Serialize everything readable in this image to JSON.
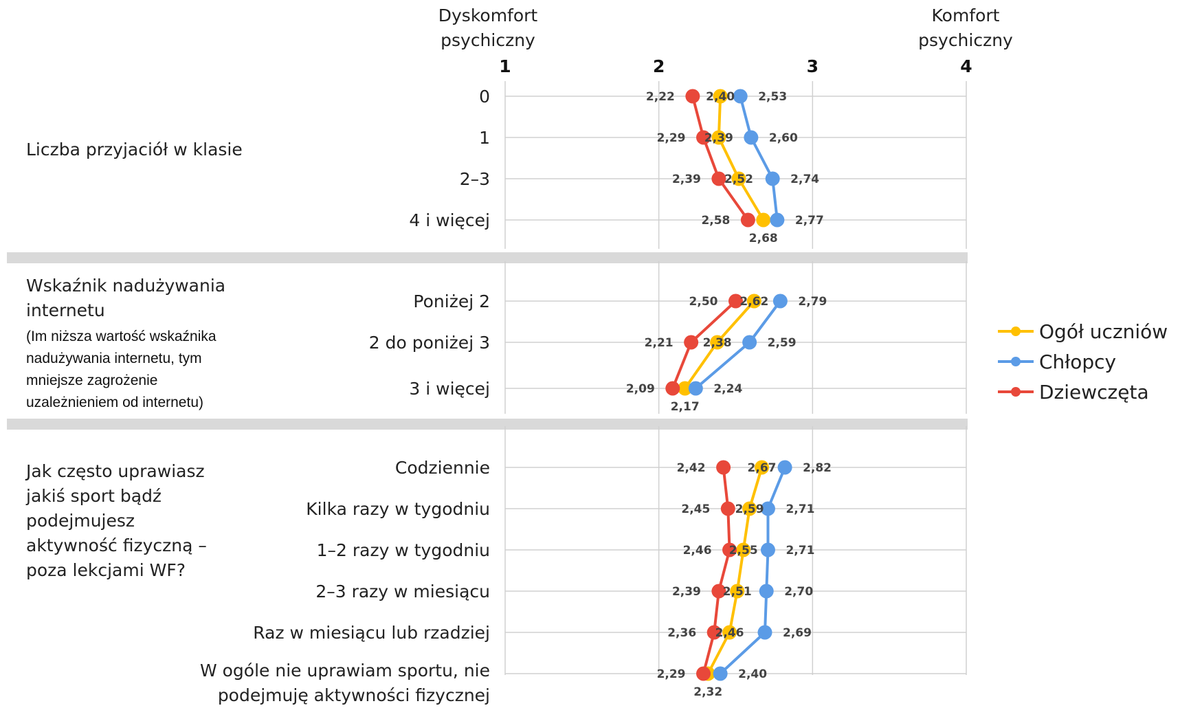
{
  "headers": {
    "left": "Dyskomfort psychiczny",
    "right": "Komfort psychiczny"
  },
  "groups": [
    {
      "label": "Liczba przyjaciół w klasie",
      "note": ""
    },
    {
      "label": "Wskaźnik nadużywania internetu",
      "note": "(Im niższa wartość wskaźnika nadużywania internetu, tym mniejsze zagrożenie uzależnieniem od internetu)"
    },
    {
      "label": "Jak często uprawiasz jakiś sport bądź podejmujesz aktywność fizyczną – poza lekcjami WF?",
      "note": ""
    }
  ],
  "legend": [
    {
      "name": "Ogół uczniów",
      "color": "#FFC000"
    },
    {
      "name": "Chłopcy",
      "color": "#5B9BE6"
    },
    {
      "name": "Dziewczęta",
      "color": "#E8483A"
    }
  ],
  "chart_data": {
    "type": "line",
    "orientation": "horizontal",
    "xlim": [
      1,
      4
    ],
    "xticks": [
      "1",
      "2",
      "3",
      "4"
    ],
    "grid": true,
    "legend_position": "right",
    "categories": [
      "0",
      "1",
      "2–3",
      "4 i więcej",
      "Poniżej 2",
      "2 do poniżej 3",
      "3 i więcej",
      "Codziennie",
      "Kilka razy w tygodniu",
      "1–2 razy w tygodniu",
      "2–3 razy w miesiącu",
      "Raz w miesiącu lub rzadziej",
      "W ogóle nie uprawiam sportu, nie podejmuję aktywności fizycznej"
    ],
    "category_groups": [
      [
        0,
        4
      ],
      [
        4,
        7
      ],
      [
        7,
        13
      ]
    ],
    "series": [
      {
        "name": "Ogół uczniów",
        "color": "#FFC000",
        "values": [
          2.4,
          2.39,
          2.52,
          2.68,
          2.62,
          2.38,
          2.17,
          2.67,
          2.59,
          2.55,
          2.51,
          2.46,
          2.32
        ],
        "labels": [
          "2,40",
          "2,39",
          "2,52",
          "2,68",
          "2,62",
          "2,38",
          "2,17",
          "2,67",
          "2,59",
          "2,55",
          "2,51",
          "2,46",
          "2,32"
        ]
      },
      {
        "name": "Chłopcy",
        "color": "#5B9BE6",
        "values": [
          2.53,
          2.6,
          2.74,
          2.77,
          2.79,
          2.59,
          2.24,
          2.82,
          2.71,
          2.71,
          2.7,
          2.69,
          2.4
        ],
        "labels": [
          "2,53",
          "2,60",
          "2,74",
          "2,77",
          "2,79",
          "2,59",
          "2,24",
          "2,82",
          "2,71",
          "2,71",
          "2,70",
          "2,69",
          "2,40"
        ]
      },
      {
        "name": "Dziewczęta",
        "color": "#E8483A",
        "values": [
          2.22,
          2.29,
          2.39,
          2.58,
          2.5,
          2.21,
          2.09,
          2.42,
          2.45,
          2.46,
          2.39,
          2.36,
          2.29
        ],
        "labels": [
          "2,22",
          "2,29",
          "2,39",
          "2,58",
          "2,50",
          "2,21",
          "2,09",
          "2,42",
          "2,45",
          "2,46",
          "2,39",
          "2,36",
          "2,29"
        ]
      }
    ]
  }
}
